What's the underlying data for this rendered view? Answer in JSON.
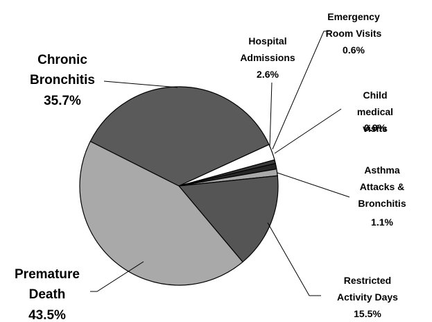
{
  "chart_data": {
    "type": "pie",
    "categories": [
      "Chronic\nBronchitis",
      "Hospital\nAdmissions",
      "Emergency\nRoom Visits",
      "Child medical\nvisits",
      "Asthma\nAttacks &\nBronchitis",
      "Restricted\nActivity Days",
      "Premature\nDeath"
    ],
    "values": [
      35.7,
      2.6,
      0.6,
      0.9,
      1.1,
      15.5,
      43.5
    ],
    "value_labels": [
      "35.7%",
      "2.6%",
      "0.6%",
      "0.9%",
      "1.1%",
      "15.5%",
      "43.5%"
    ],
    "colors": [
      "#5a5a5a",
      "#ffffff",
      "#3a3a3a",
      "#262626",
      "#a9a9a9",
      "#555555",
      "#a9a9a9"
    ]
  }
}
